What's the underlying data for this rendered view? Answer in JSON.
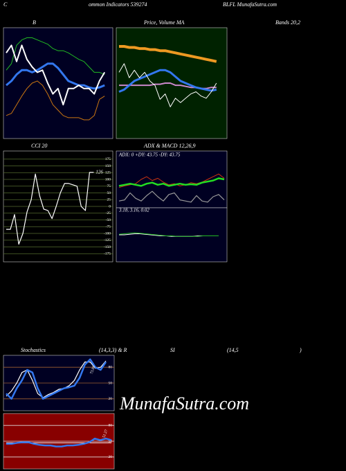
{
  "header": {
    "texts": [
      "C",
      "ommon  Indicators 539274",
      "BLFL  MunafaSutra.com",
      "Bands 20,2",
      "(14,3,3) & R",
      "SI",
      "(14,5",
      ")"
    ],
    "watermark": "MunafaSutra.com"
  },
  "chart_data": [
    {
      "type": "line",
      "title": "B",
      "background": "#000022",
      "ylim": [
        0,
        100
      ],
      "series": [
        {
          "color": "#22bb22",
          "values": [
            62,
            68,
            85,
            90,
            92,
            92,
            90,
            88,
            86,
            82,
            80,
            80,
            78,
            75,
            72,
            70,
            65,
            60,
            60,
            58
          ]
        },
        {
          "color": "#3377ee",
          "values": [
            48,
            52,
            58,
            62,
            62,
            60,
            62,
            65,
            68,
            68,
            64,
            58,
            52,
            50,
            48,
            48,
            46,
            45,
            46,
            48
          ]
        },
        {
          "color": "#cc7711",
          "values": [
            20,
            22,
            30,
            38,
            45,
            50,
            52,
            48,
            40,
            30,
            25,
            20,
            18,
            18,
            18,
            16,
            16,
            20,
            35,
            38
          ]
        },
        {
          "color": "#ffffff",
          "values": [
            78,
            85,
            70,
            85,
            72,
            65,
            60,
            62,
            50,
            40,
            45,
            30,
            45,
            45,
            48,
            45,
            45,
            40,
            52,
            60
          ]
        }
      ]
    },
    {
      "type": "line",
      "title": "Price, Volume MA",
      "background": "#002200",
      "ylim": [
        0,
        100
      ],
      "series": [
        {
          "color": "#ee9922",
          "values": [
            84,
            84,
            83,
            83,
            82,
            82,
            81,
            81,
            80,
            80,
            79,
            78,
            77,
            76,
            75,
            74,
            73,
            72,
            71,
            70
          ]
        },
        {
          "color": "#cc88cc",
          "values": [
            48,
            48,
            48,
            48,
            48,
            48,
            48,
            49,
            49,
            50,
            50,
            48,
            48,
            47,
            46,
            46,
            45,
            45,
            46,
            46
          ]
        },
        {
          "color": "#3377ee",
          "values": [
            42,
            44,
            48,
            52,
            54,
            56,
            58,
            60,
            62,
            62,
            60,
            56,
            52,
            50,
            48,
            46,
            45,
            44,
            43,
            44
          ]
        },
        {
          "color": "#ffffff",
          "values": [
            60,
            68,
            55,
            62,
            55,
            60,
            52,
            48,
            35,
            40,
            28,
            36,
            32,
            36,
            40,
            42,
            38,
            36,
            42,
            50
          ]
        }
      ]
    },
    {
      "type": "line",
      "title": "CCI 20",
      "background": "#000000",
      "ylim": [
        -200,
        200
      ],
      "grid": true,
      "grid_color": "#556b2f",
      "yticks": [
        175,
        150,
        125,
        100,
        75,
        50,
        25,
        0,
        -25,
        -50,
        -75,
        -100,
        -125,
        -150,
        -175
      ],
      "series": [
        {
          "color": "#ffffff",
          "values": [
            -85,
            -85,
            -30,
            -140,
            -100,
            -20,
            25,
            120,
            40,
            -10,
            -15,
            -45,
            0,
            50,
            85,
            85,
            80,
            75,
            0,
            -15,
            126,
            126
          ]
        }
      ]
    },
    {
      "type": "line",
      "title": "ADX  & MACD 12,26,9",
      "annotation": "ADX: 0  +DY: 43.75 -DY: 43.75",
      "background": "#000022",
      "ylim": [
        0,
        100
      ],
      "series": [
        {
          "color": "#cc3311",
          "values": [
            35,
            38,
            40,
            42,
            50,
            55,
            48,
            52,
            45,
            40,
            42,
            38,
            40,
            44,
            42,
            45,
            50,
            55,
            60,
            52
          ]
        },
        {
          "color": "#999999",
          "values": [
            10,
            12,
            25,
            15,
            10,
            20,
            28,
            18,
            10,
            22,
            25,
            12,
            10,
            8,
            20,
            10,
            8,
            18,
            22,
            12
          ]
        },
        {
          "color": "#22dd22",
          "values": [
            38,
            40,
            42,
            40,
            38,
            42,
            44,
            40,
            42,
            38,
            40,
            42,
            40,
            41,
            40,
            44,
            46,
            48,
            52,
            50
          ]
        }
      ]
    },
    {
      "type": "line",
      "annotation": "3.18, 3.16, 0.02",
      "background": "#000022",
      "ylim": [
        0,
        100
      ],
      "series": [
        {
          "color": "#ffffff",
          "values": [
            50,
            50,
            51,
            52,
            52,
            51,
            50,
            49,
            48,
            48,
            47,
            47,
            47,
            47,
            47,
            48,
            48,
            48,
            48,
            48
          ]
        },
        {
          "color": "#22bb22",
          "values": [
            51,
            52,
            53,
            54,
            53,
            52,
            51,
            50,
            49,
            48,
            48,
            47,
            47,
            47,
            47,
            47,
            48,
            48,
            48,
            48
          ]
        }
      ]
    },
    {
      "type": "line",
      "title": "Stochastics",
      "value_label": "73.89",
      "background": "#000022",
      "ylim": [
        0,
        100
      ],
      "grid": true,
      "grid_color": "#a06030",
      "yticks": [
        80,
        50,
        20
      ],
      "series": [
        {
          "color": "#ffffff",
          "values": [
            25,
            35,
            50,
            70,
            75,
            55,
            30,
            22,
            28,
            32,
            38,
            40,
            45,
            55,
            75,
            90,
            90,
            78,
            80,
            92
          ]
        },
        {
          "color": "#3377ee",
          "values": [
            30,
            20,
            40,
            55,
            75,
            70,
            40,
            20,
            25,
            30,
            35,
            40,
            42,
            45,
            60,
            85,
            95,
            80,
            75,
            90
          ]
        }
      ]
    },
    {
      "type": "line",
      "value_label": "51.27",
      "background": "#880000",
      "ylim": [
        0,
        100
      ],
      "grid": true,
      "grid_color": "#dddddd",
      "yticks": [
        80,
        50,
        20
      ],
      "series": [
        {
          "color": "#ffffff",
          "values": [
            47,
            47,
            47,
            47,
            47,
            47,
            47,
            47,
            47,
            47,
            47,
            47,
            47,
            47,
            47,
            47,
            47,
            47,
            47,
            47
          ]
        },
        {
          "color": "#3377ee",
          "values": [
            45,
            45,
            47,
            48,
            48,
            45,
            43,
            42,
            42,
            40,
            40,
            42,
            42,
            43,
            45,
            48,
            55,
            52,
            55,
            52
          ]
        }
      ]
    }
  ]
}
